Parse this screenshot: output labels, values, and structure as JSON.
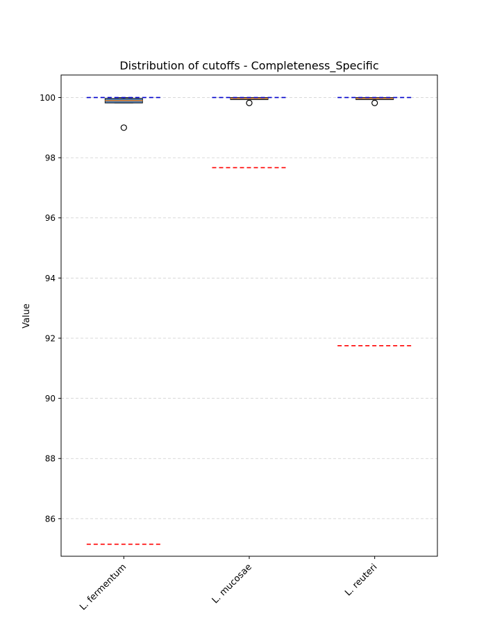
{
  "chart_data": {
    "type": "box",
    "title": "Distribution of cutoffs - Completeness_Specific",
    "xlabel": "",
    "ylabel": "Value",
    "ylim": [
      84.75,
      100.75
    ],
    "yticks": [
      86,
      88,
      90,
      92,
      94,
      96,
      98,
      100
    ],
    "grid": "y-dashed",
    "categories": [
      "L. fermentum",
      "L. mucosae",
      "L. reuteri"
    ],
    "boxes": [
      {
        "category": "L. fermentum",
        "whislo": 99.82,
        "q1": 99.82,
        "median": 99.9,
        "q3": 99.97,
        "whishi": 100.0,
        "fliers": [
          99.0
        ],
        "upper_cutoff": 100.0,
        "lower_cutoff": 85.15
      },
      {
        "category": "L. mucosae",
        "whislo": 99.93,
        "q1": 99.93,
        "median": 99.97,
        "q3": 100.0,
        "whishi": 100.0,
        "fliers": [
          99.82
        ],
        "upper_cutoff": 100.0,
        "lower_cutoff": 97.67
      },
      {
        "category": "L. reuteri",
        "whislo": 99.93,
        "q1": 99.93,
        "median": 99.97,
        "q3": 100.0,
        "whishi": 100.0,
        "fliers": [
          99.82
        ],
        "upper_cutoff": 100.0,
        "lower_cutoff": 91.75
      }
    ],
    "colors": {
      "box_fill": "#4f7fb4",
      "box_edge": "#1a1a1a",
      "median": "#e67e22",
      "upper_cutoff_line": "#0000cc",
      "lower_cutoff_line": "#ff0000",
      "grid": "#cccccc"
    }
  }
}
